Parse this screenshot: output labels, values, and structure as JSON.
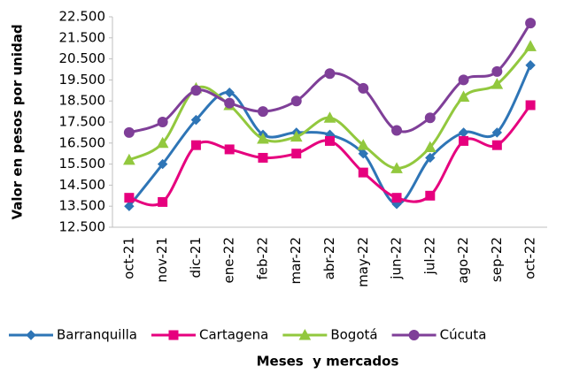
{
  "chart_data": {
    "type": "line",
    "y_label": "Valor en pesos por unidad",
    "x_label": "Meses  y mercados",
    "categories": [
      "oct-21",
      "nov-21",
      "dic-21",
      "ene-22",
      "feb-22",
      "mar-22",
      "abr-22",
      "may-22",
      "jun-22",
      "jul-22",
      "ago-22",
      "sep-22",
      "oct-22"
    ],
    "series": [
      {
        "name": "Barranquilla",
        "color": "#2e75b6",
        "marker": "diamond",
        "values": [
          13500,
          15500,
          17600,
          18900,
          16900,
          17000,
          16900,
          16000,
          13600,
          15800,
          17000,
          17000,
          20200
        ]
      },
      {
        "name": "Cartagena",
        "color": "#e6007e",
        "marker": "square",
        "values": [
          13900,
          13700,
          16400,
          16200,
          15800,
          16000,
          16600,
          15100,
          13900,
          14000,
          16600,
          16400,
          18300
        ]
      },
      {
        "name": "Bogotá",
        "color": "#92c83e",
        "marker": "triangle",
        "values": [
          15700,
          16500,
          19100,
          18300,
          16700,
          16800,
          17700,
          16400,
          15300,
          16300,
          18700,
          19300,
          21100
        ]
      },
      {
        "name": "Cúcuta",
        "color": "#7f3f98",
        "marker": "circle",
        "values": [
          17000,
          17500,
          19000,
          18400,
          18000,
          18500,
          19800,
          19100,
          17100,
          17700,
          19500,
          19900,
          22200
        ]
      }
    ],
    "ylim": [
      12500,
      22500
    ],
    "yticks": [
      {
        "value": 12500,
        "label": "12.500"
      },
      {
        "value": 13500,
        "label": "13.500"
      },
      {
        "value": 14500,
        "label": "14.500"
      },
      {
        "value": 15500,
        "label": "15.500"
      },
      {
        "value": 16500,
        "label": "16.500"
      },
      {
        "value": 17500,
        "label": "17.500"
      },
      {
        "value": 18500,
        "label": "18.500"
      },
      {
        "value": 19500,
        "label": "19.500"
      },
      {
        "value": 20500,
        "label": "20.500"
      },
      {
        "value": 21500,
        "label": "21.500"
      },
      {
        "value": 22500,
        "label": "22.500"
      }
    ],
    "smooth": true,
    "legend": "bottom"
  }
}
